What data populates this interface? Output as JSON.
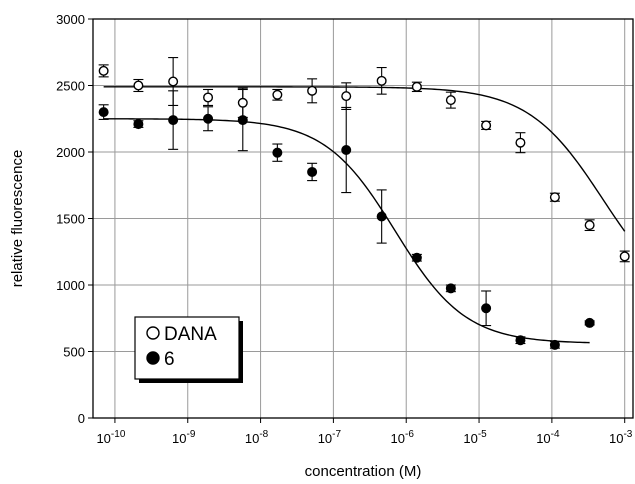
{
  "chart_data": {
    "type": "scatter",
    "xlabel": "concentration (M)",
    "ylabel": "relative fluorescence",
    "xscale": "log",
    "xlim": [
      5e-11,
      0.0013
    ],
    "ylim": [
      0,
      3000
    ],
    "grid": true,
    "legend_position": "bottom-left",
    "y_ticks": [
      0,
      500,
      1000,
      1500,
      2000,
      2500,
      3000
    ],
    "x_ticks": [
      {
        "value": 1e-10,
        "base": "10",
        "exp": "-10"
      },
      {
        "value": 1e-09,
        "base": "10",
        "exp": "-9"
      },
      {
        "value": 1e-08,
        "base": "10",
        "exp": "-8"
      },
      {
        "value": 1e-07,
        "base": "10",
        "exp": "-7"
      },
      {
        "value": 1e-06,
        "base": "10",
        "exp": "-6"
      },
      {
        "value": 1e-05,
        "base": "10",
        "exp": "-5"
      },
      {
        "value": 0.0001,
        "base": "10",
        "exp": "-4"
      },
      {
        "value": 0.001,
        "base": "10",
        "exp": "-3"
      }
    ],
    "series": [
      {
        "name": "DANA",
        "marker": "open-circle",
        "points": [
          {
            "x": 7e-11,
            "y": 2610,
            "err": 45
          },
          {
            "x": 2.1e-10,
            "y": 2500,
            "err": 45
          },
          {
            "x": 6.3e-10,
            "y": 2530,
            "err": 180
          },
          {
            "x": 1.9e-09,
            "y": 2410,
            "err": 60
          },
          {
            "x": 5.7e-09,
            "y": 2370,
            "err": 110
          },
          {
            "x": 1.7e-08,
            "y": 2430,
            "err": 40
          },
          {
            "x": 5.1e-08,
            "y": 2460,
            "err": 90
          },
          {
            "x": 1.5e-07,
            "y": 2420,
            "err": 100
          },
          {
            "x": 4.6e-07,
            "y": 2535,
            "err": 100
          },
          {
            "x": 1.4e-06,
            "y": 2490,
            "err": 35
          },
          {
            "x": 4.1e-06,
            "y": 2390,
            "err": 60
          },
          {
            "x": 1.25e-05,
            "y": 2200,
            "err": 30
          },
          {
            "x": 3.7e-05,
            "y": 2070,
            "err": 75
          },
          {
            "x": 0.00011,
            "y": 1660,
            "err": 30
          },
          {
            "x": 0.00033,
            "y": 1450,
            "err": 40
          },
          {
            "x": 0.001,
            "y": 1215,
            "err": 40
          }
        ],
        "fit": {
          "top": 2490,
          "bottom": 800,
          "logEC50": -3.3,
          "hill": 0.85,
          "x_from": 7e-11,
          "x_to": 0.001
        }
      },
      {
        "name": "6",
        "marker": "filled-circle",
        "points": [
          {
            "x": 7e-11,
            "y": 2300,
            "err": 55
          },
          {
            "x": 2.1e-10,
            "y": 2210,
            "err": 25
          },
          {
            "x": 6.3e-10,
            "y": 2240,
            "err": 220
          },
          {
            "x": 1.9e-09,
            "y": 2250,
            "err": 90
          },
          {
            "x": 5.7e-09,
            "y": 2240,
            "err": 230
          },
          {
            "x": 1.7e-08,
            "y": 1995,
            "err": 65
          },
          {
            "x": 5.1e-08,
            "y": 1850,
            "err": 65
          },
          {
            "x": 1.5e-07,
            "y": 2015,
            "err": 320
          },
          {
            "x": 4.6e-07,
            "y": 1515,
            "err": 200
          },
          {
            "x": 1.4e-06,
            "y": 1205,
            "err": 25
          },
          {
            "x": 4.1e-06,
            "y": 975,
            "err": 25
          },
          {
            "x": 1.25e-05,
            "y": 825,
            "err": 130
          },
          {
            "x": 3.7e-05,
            "y": 585,
            "err": 25
          },
          {
            "x": 0.00011,
            "y": 550,
            "err": 25
          },
          {
            "x": 0.00033,
            "y": 715,
            "err": 15
          }
        ],
        "fit": {
          "top": 2250,
          "bottom": 560,
          "logEC50": -6.15,
          "hill": 0.9,
          "x_from": 7e-11,
          "x_to": 0.00033
        }
      }
    ]
  }
}
